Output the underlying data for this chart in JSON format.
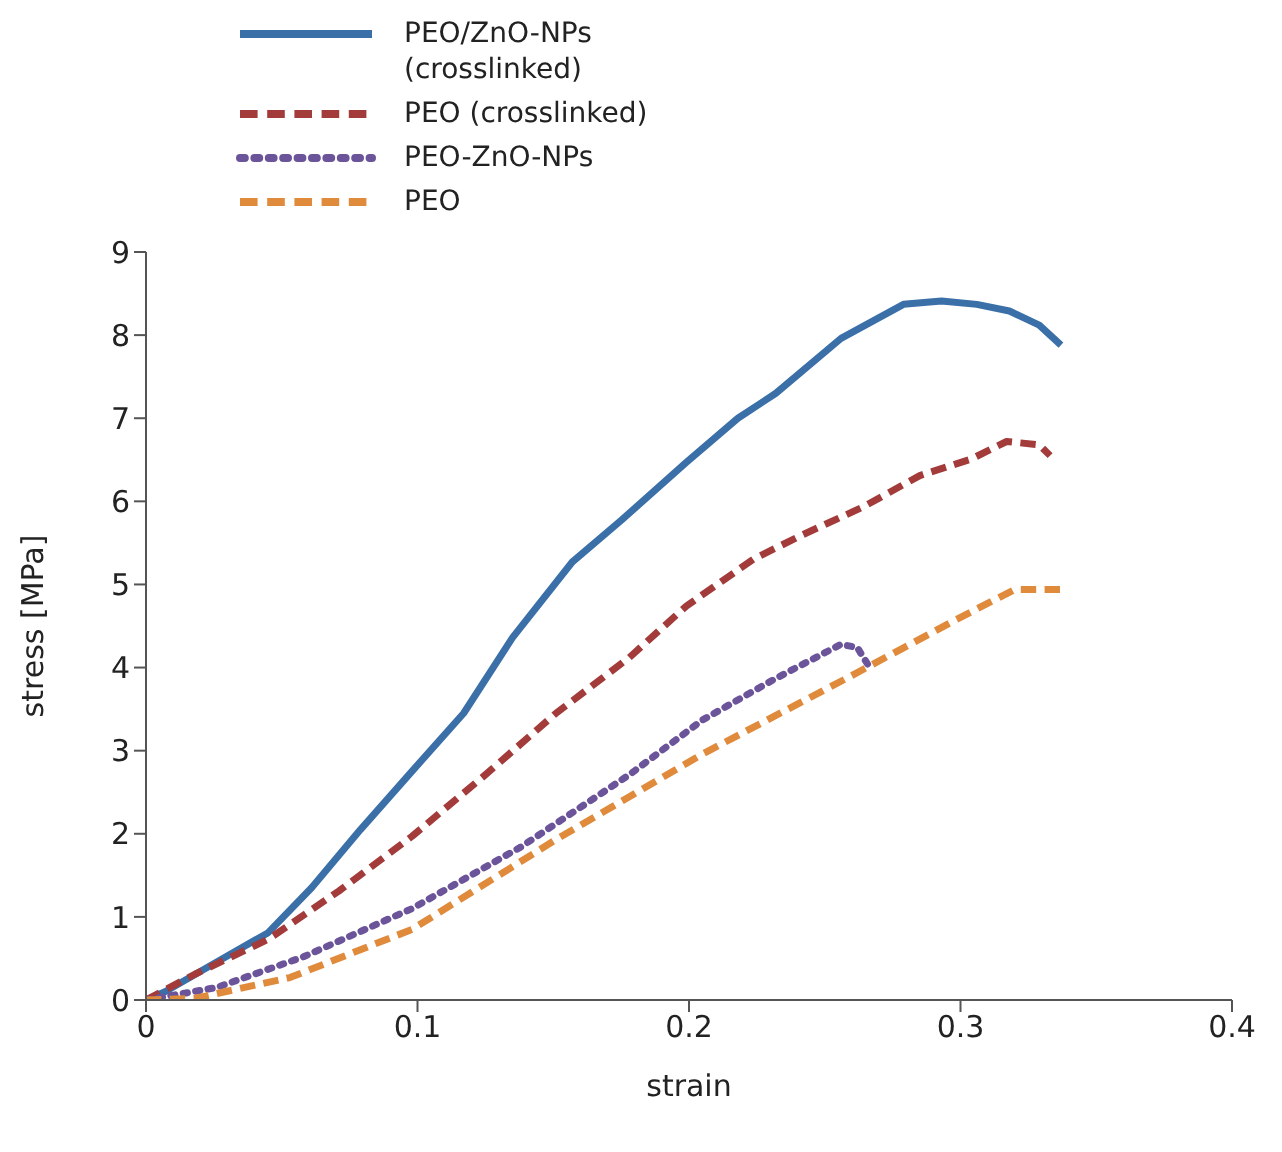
{
  "chart_data": {
    "type": "line",
    "xlabel": "strain",
    "ylabel": "stress [MPa]",
    "xlim": [
      0,
      0.4
    ],
    "xticks": [
      0,
      0.1,
      0.2,
      0.3,
      0.4
    ],
    "ylim": [
      0,
      9
    ],
    "yticks": [
      0,
      1,
      2,
      3,
      4,
      5,
      6,
      7,
      8,
      9
    ],
    "grid": false,
    "legend": "top",
    "marker": "none",
    "series": [
      {
        "name": "PEO/ZnO-NPs (crosslinked)",
        "color": "#3b6fa8",
        "line_style": "solid",
        "x": [
          0,
          0.007,
          0.023,
          0.045,
          0.061,
          0.079,
          0.099,
          0.117,
          0.135,
          0.157,
          0.175,
          0.199,
          0.218,
          0.232,
          0.256,
          0.279,
          0.293,
          0.306,
          0.318,
          0.329,
          0.337
        ],
        "values": [
          0,
          0.1,
          0.4,
          0.81,
          1.35,
          2.05,
          2.79,
          3.45,
          4.36,
          5.27,
          5.77,
          6.47,
          7.0,
          7.3,
          7.96,
          8.37,
          8.41,
          8.37,
          8.29,
          8.12,
          7.88
        ]
      },
      {
        "name": "PEO (crosslinked)",
        "color": "#a33b3b",
        "line_style": "dashed",
        "x": [
          0,
          0.018,
          0.045,
          0.071,
          0.098,
          0.125,
          0.151,
          0.178,
          0.199,
          0.224,
          0.242,
          0.264,
          0.285,
          0.304,
          0.317,
          0.329,
          0.333
        ],
        "values": [
          0,
          0.31,
          0.73,
          1.31,
          1.97,
          2.71,
          3.45,
          4.12,
          4.74,
          5.31,
          5.6,
          5.93,
          6.31,
          6.51,
          6.72,
          6.68,
          6.55
        ]
      },
      {
        "name": "PEO-ZnO-NPs",
        "color": "#6b5499",
        "line_style": "dotted",
        "x": [
          0,
          0.026,
          0.058,
          0.098,
          0.138,
          0.178,
          0.205,
          0.232,
          0.256,
          0.262,
          0.266
        ],
        "values": [
          0,
          0.15,
          0.52,
          1.1,
          1.84,
          2.71,
          3.37,
          3.87,
          4.28,
          4.24,
          4.03
        ]
      },
      {
        "name": "PEO",
        "color": "#e08a3c",
        "line_style": "dashed",
        "x": [
          0,
          0.018,
          0.053,
          0.098,
          0.151,
          0.205,
          0.258,
          0.298,
          0.32,
          0.337
        ],
        "values": [
          0,
          0.02,
          0.27,
          0.85,
          1.93,
          2.96,
          3.87,
          4.57,
          4.94,
          4.94
        ]
      }
    ]
  }
}
